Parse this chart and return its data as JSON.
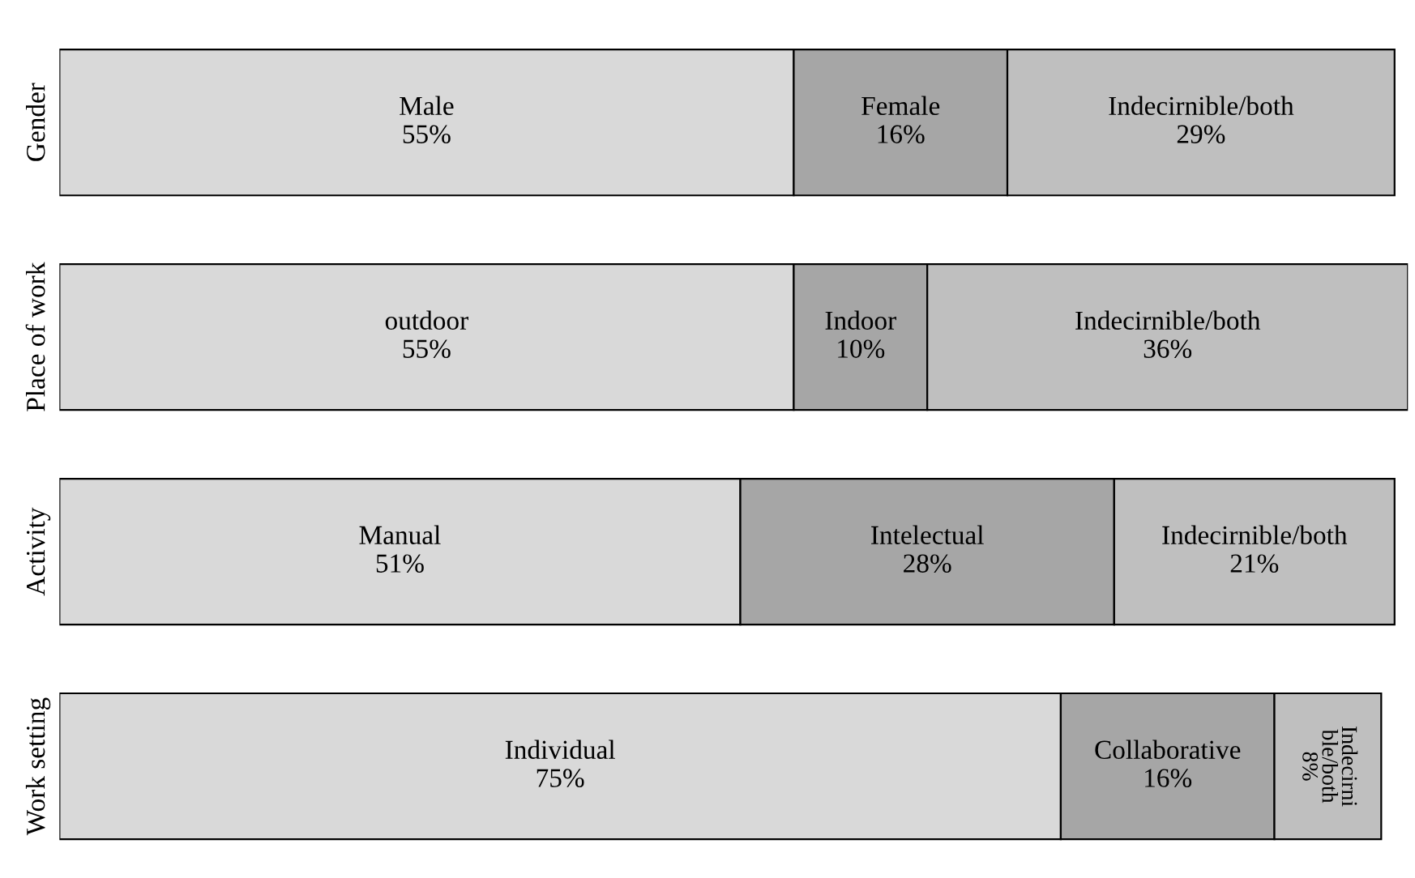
{
  "chart_data": {
    "type": "bar",
    "orientation": "horizontal",
    "stacked": true,
    "categories": [
      "Gender",
      "Place of work",
      "Activity",
      "Work setting"
    ],
    "series": [
      {
        "color": "#d9d9d9",
        "values": [
          55,
          55,
          51,
          75
        ],
        "value_labels": [
          "Male\n55%",
          "outdoor\n55%",
          "Manual\n51%",
          "Individual\n75%"
        ]
      },
      {
        "color": "#a6a6a6",
        "values": [
          16,
          10,
          28,
          16
        ],
        "value_labels": [
          "Female\n16%",
          "Indoor\n10%",
          "Intelectual\n28%",
          "Collaborative\n16%"
        ]
      },
      {
        "color": "#bfbfbf",
        "values": [
          29,
          36,
          21,
          8
        ],
        "value_labels": [
          "Indecirnible/both\n29%",
          "Indecirnible/both\n36%",
          "Indecirnible/both\n21%",
          "Indecirni\nble/both\n8%"
        ]
      }
    ],
    "grid": false,
    "legend": false
  }
}
